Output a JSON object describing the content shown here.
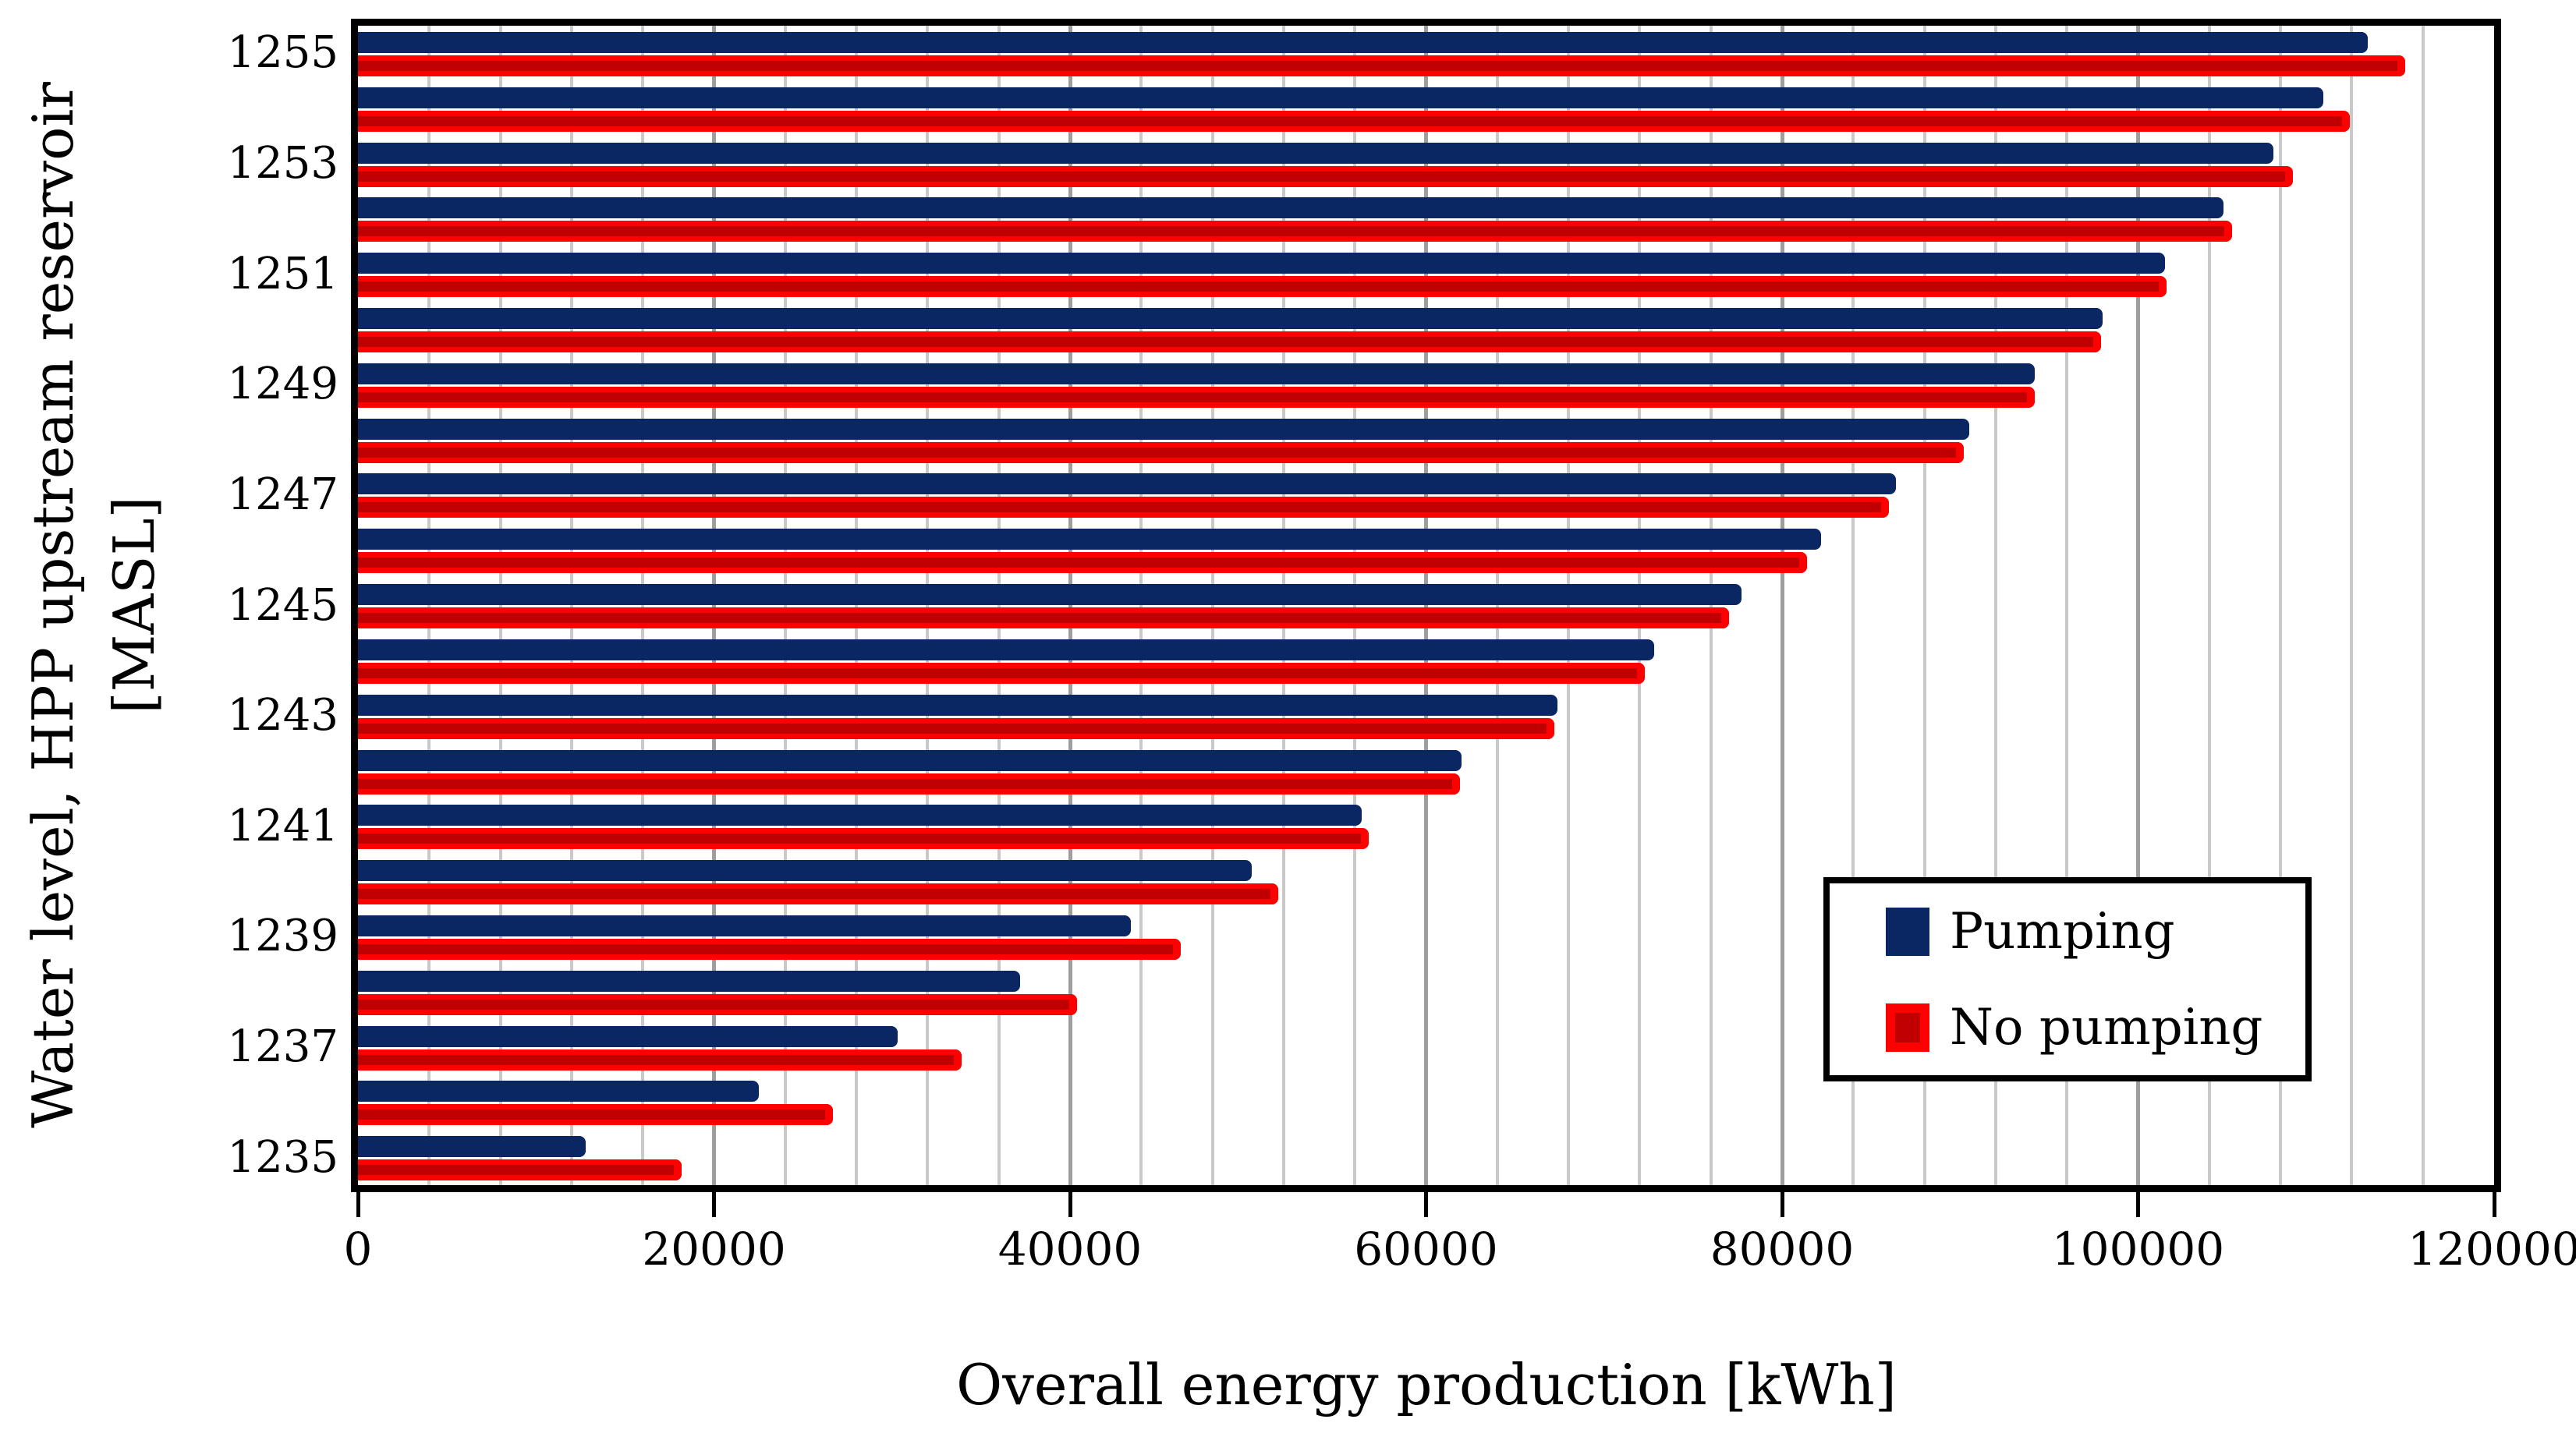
{
  "chart_data": {
    "type": "bar",
    "orientation": "horizontal",
    "title": "",
    "xlabel": "Overall energy production [kWh]",
    "ylabel": "Water level, HPP upstream reservoir [MASL]",
    "ylabel_line1": "Water level, HPP upstream reservoir",
    "ylabel_line2": "[MASL]",
    "categories": [
      1255,
      1254,
      1253,
      1252,
      1251,
      1250,
      1249,
      1248,
      1247,
      1246,
      1245,
      1244,
      1243,
      1242,
      1241,
      1240,
      1239,
      1238,
      1237,
      1236,
      1235
    ],
    "series": [
      {
        "name": "Pumping",
        "color": "#0b2763",
        "values": [
          112900,
          110400,
          107600,
          104800,
          101500,
          98000,
          94200,
          90500,
          86400,
          82200,
          77700,
          72800,
          67400,
          62000,
          56400,
          50200,
          43400,
          37200,
          30300,
          22500,
          12800
        ]
      },
      {
        "name": "No pumping",
        "color": "#fe0000",
        "color_dark": "#c00000",
        "values": [
          115000,
          111900,
          108700,
          105300,
          101600,
          97900,
          94200,
          90200,
          86000,
          81400,
          77000,
          72300,
          67200,
          61900,
          56800,
          51700,
          46200,
          40400,
          33900,
          26700,
          18200
        ]
      }
    ],
    "xlim": [
      0,
      120000
    ],
    "x_major_step": 20000,
    "x_minor_step": 4000,
    "x_tick_labels": [
      "0",
      "20000",
      "40000",
      "60000",
      "80000",
      "100000",
      "120000"
    ],
    "y_tick_labels": [
      "1255",
      "1253",
      "1251",
      "1249",
      "1247",
      "1245",
      "1243",
      "1241",
      "1239",
      "1237",
      "1235"
    ],
    "grid": {
      "vertical_minor": true,
      "vertical_major": true,
      "horizontal": false
    },
    "legend_position": "inside-lower-right"
  },
  "legend": {
    "items": [
      {
        "label": "Pumping"
      },
      {
        "label": "No pumping"
      }
    ]
  },
  "colors": {
    "pumping": "#0b2763",
    "no_pumping_bright": "#fe0000",
    "no_pumping_dark": "#c00000",
    "grid_minor": "#c9c9c9",
    "grid_major": "#9e9e9e",
    "axis": "#000000",
    "background": "#ffffff"
  }
}
